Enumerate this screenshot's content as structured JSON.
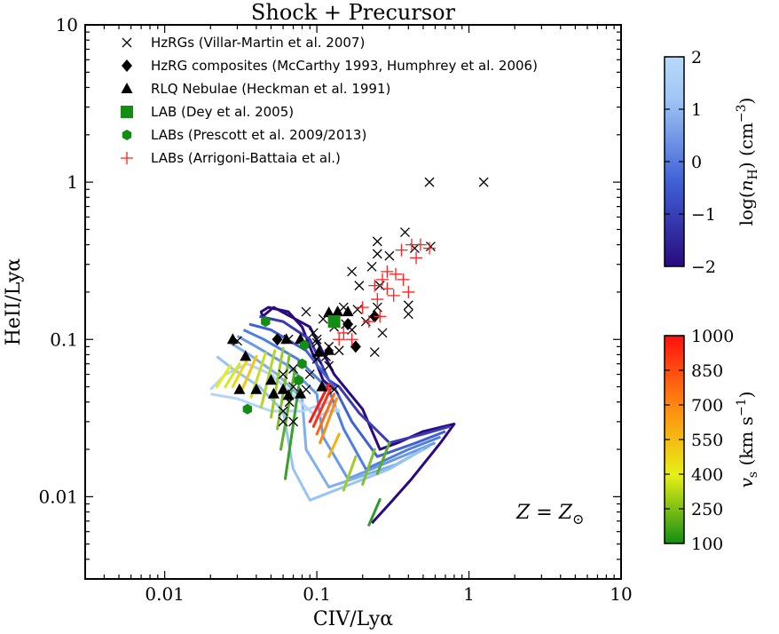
{
  "chart_data": {
    "type": "scatter",
    "title": "Shock + Precursor",
    "xlabel": "CIV/Lyα",
    "ylabel": "HeII/Lyα",
    "x_scale": "log",
    "y_scale": "log",
    "xlim": [
      0.003,
      10
    ],
    "ylim": [
      0.003,
      10
    ],
    "x_ticks": [
      {
        "v": 0.01,
        "label": "0.01"
      },
      {
        "v": 0.1,
        "label": "0.1"
      },
      {
        "v": 1,
        "label": "1"
      },
      {
        "v": 10,
        "label": "10"
      }
    ],
    "y_ticks": [
      {
        "v": 0.01,
        "label": "0.01"
      },
      {
        "v": 0.1,
        "label": "0.1"
      },
      {
        "v": 1,
        "label": "1"
      },
      {
        "v": 10,
        "label": "10"
      }
    ],
    "annotation": {
      "text_main": "Z",
      "text_eq": " = ",
      "text_sub": "Z",
      "text_sun": "⊙"
    },
    "legend": {
      "position": "top",
      "entries": [
        {
          "marker": "x",
          "color": "#000000",
          "label": "HzRGs (Villar-Martin et al. 2007)"
        },
        {
          "marker": "diamond",
          "color": "#000000",
          "label": "HzRG composites (McCarthy 1993, Humphrey et al. 2006)"
        },
        {
          "marker": "triangle",
          "color": "#000000",
          "label": "RLQ Nebulae (Heckman et al. 1991)"
        },
        {
          "marker": "square",
          "color": "#138d13",
          "label": "LAB (Dey et al. 2005)"
        },
        {
          "marker": "hexagon",
          "color": "#138d13",
          "label": "LABs (Prescott et al. 2009/2013)"
        },
        {
          "marker": "plus",
          "color": "#ff2020",
          "label": "LABs (Arrigoni-Battaia et al.)"
        }
      ]
    },
    "series": [
      {
        "name": "HzRGs (Villar-Martin et al. 2007)",
        "marker": "x",
        "color": "#000000",
        "points": [
          [
            0.55,
            1.0
          ],
          [
            1.25,
            1.0
          ],
          [
            0.38,
            0.48
          ],
          [
            0.25,
            0.42
          ],
          [
            0.56,
            0.39
          ],
          [
            0.44,
            0.38
          ],
          [
            0.25,
            0.35
          ],
          [
            0.3,
            0.34
          ],
          [
            0.17,
            0.27
          ],
          [
            0.23,
            0.29
          ],
          [
            0.26,
            0.22
          ],
          [
            0.19,
            0.22
          ],
          [
            0.25,
            0.16
          ],
          [
            0.4,
            0.165
          ],
          [
            0.4,
            0.145
          ],
          [
            0.15,
            0.16
          ],
          [
            0.185,
            0.155
          ],
          [
            0.155,
            0.125
          ],
          [
            0.17,
            0.115
          ],
          [
            0.21,
            0.13
          ],
          [
            0.13,
            0.12
          ],
          [
            0.11,
            0.135
          ],
          [
            0.095,
            0.11
          ],
          [
            0.1,
            0.1
          ],
          [
            0.12,
            0.09
          ],
          [
            0.27,
            0.11
          ],
          [
            0.14,
            0.085
          ],
          [
            0.1,
            0.095
          ],
          [
            0.115,
            0.078
          ],
          [
            0.12,
            0.068
          ],
          [
            0.24,
            0.083
          ],
          [
            0.085,
            0.15
          ],
          [
            0.1,
            0.075
          ],
          [
            0.09,
            0.06
          ],
          [
            0.06,
            0.06
          ],
          [
            0.085,
            0.048
          ],
          [
            0.13,
            0.048
          ],
          [
            0.07,
            0.05
          ],
          [
            0.066,
            0.04
          ],
          [
            0.06,
            0.035
          ],
          [
            0.06,
            0.03
          ],
          [
            0.07,
            0.03
          ],
          [
            0.07,
            0.065
          ],
          [
            0.065,
            0.1
          ],
          [
            0.03,
            0.098
          ]
        ]
      },
      {
        "name": "HzRG composites (McCarthy 1993, Humphrey et al. 2006)",
        "marker": "diamond",
        "color": "#000000",
        "points": [
          [
            0.16,
            0.125
          ],
          [
            0.18,
            0.09
          ],
          [
            0.24,
            0.14
          ],
          [
            0.055,
            0.1
          ]
        ]
      },
      {
        "name": "RLQ Nebulae (Heckman et al. 1991)",
        "marker": "triangle",
        "color": "#000000",
        "points": [
          [
            0.028,
            0.1
          ],
          [
            0.034,
            0.078
          ],
          [
            0.063,
            0.1
          ],
          [
            0.05,
            0.055
          ],
          [
            0.06,
            0.048
          ],
          [
            0.078,
            0.1
          ],
          [
            0.103,
            0.083
          ],
          [
            0.137,
            0.15
          ],
          [
            0.16,
            0.15
          ],
          [
            0.12,
            0.148
          ],
          [
            0.12,
            0.085
          ],
          [
            0.031,
            0.048
          ],
          [
            0.04,
            0.048
          ],
          [
            0.052,
            0.045
          ],
          [
            0.065,
            0.044
          ],
          [
            0.078,
            0.045
          ],
          [
            0.108,
            0.05
          ]
        ]
      },
      {
        "name": "LAB (Dey et al. 2005)",
        "marker": "square",
        "color": "#138d13",
        "points": [
          [
            0.13,
            0.13
          ]
        ]
      },
      {
        "name": "LABs (Prescott et al. 2009/2013)",
        "marker": "hexagon",
        "color": "#138d13",
        "points": [
          [
            0.046,
            0.13
          ],
          [
            0.083,
            0.092
          ],
          [
            0.035,
            0.036
          ],
          [
            0.08,
            0.07
          ],
          [
            0.076,
            0.055
          ]
        ]
      },
      {
        "name": "LABs (Arrigoni-Battaia et al.)",
        "marker": "plus",
        "color": "#ff2020",
        "points": [
          [
            0.42,
            0.4
          ],
          [
            0.48,
            0.4
          ],
          [
            0.55,
            0.38
          ],
          [
            0.36,
            0.37
          ],
          [
            0.45,
            0.33
          ],
          [
            0.29,
            0.27
          ],
          [
            0.33,
            0.26
          ],
          [
            0.27,
            0.24
          ],
          [
            0.37,
            0.24
          ],
          [
            0.24,
            0.22
          ],
          [
            0.29,
            0.21
          ],
          [
            0.32,
            0.19
          ],
          [
            0.25,
            0.18
          ],
          [
            0.4,
            0.2
          ],
          [
            0.2,
            0.16
          ],
          [
            0.26,
            0.14
          ],
          [
            0.22,
            0.13
          ],
          [
            0.15,
            0.11
          ],
          [
            0.14,
            0.1
          ],
          [
            0.17,
            0.1
          ]
        ]
      }
    ],
    "model_grid": [
      {
        "nH": -2,
        "color": "#2a0a7f",
        "points": [
          [
            0.13,
            0.048
          ],
          [
            0.11,
            0.055
          ],
          [
            0.08,
            0.12
          ],
          [
            0.065,
            0.15
          ],
          [
            0.048,
            0.16
          ],
          [
            0.043,
            0.15
          ],
          [
            0.044,
            0.14
          ],
          [
            0.052,
            0.16
          ],
          [
            0.09,
            0.12
          ],
          [
            0.13,
            0.06
          ],
          [
            0.2,
            0.036
          ],
          [
            0.26,
            0.02
          ],
          [
            0.34,
            0.022
          ],
          [
            0.5,
            0.026
          ],
          [
            0.8,
            0.029
          ],
          [
            0.65,
            0.022
          ],
          [
            0.42,
            0.013
          ],
          [
            0.3,
            0.009
          ],
          [
            0.23,
            0.0068
          ]
        ]
      },
      {
        "nH": -1.5,
        "color": "#3a3ab5",
        "points": [
          [
            0.042,
            0.14
          ],
          [
            0.06,
            0.13
          ],
          [
            0.09,
            0.1
          ],
          [
            0.12,
            0.055
          ],
          [
            0.14,
            0.05
          ],
          [
            0.19,
            0.034
          ],
          [
            0.3,
            0.022
          ],
          [
            0.5,
            0.025
          ],
          [
            0.75,
            0.028
          ]
        ]
      },
      {
        "name": "",
        "nH": -1,
        "color": "#3f60d6",
        "points": [
          [
            0.036,
            0.125
          ],
          [
            0.05,
            0.115
          ],
          [
            0.085,
            0.085
          ],
          [
            0.13,
            0.05
          ],
          [
            0.17,
            0.03
          ],
          [
            0.25,
            0.018
          ],
          [
            0.45,
            0.022
          ],
          [
            0.7,
            0.026
          ]
        ]
      },
      {
        "nH": -0.5,
        "color": "#4f7ee0",
        "points": [
          [
            0.033,
            0.115
          ],
          [
            0.045,
            0.1
          ],
          [
            0.075,
            0.075
          ],
          [
            0.12,
            0.048
          ],
          [
            0.15,
            0.027
          ],
          [
            0.21,
            0.015
          ],
          [
            0.4,
            0.02
          ],
          [
            0.65,
            0.024
          ]
        ]
      },
      {
        "nH": 0,
        "color": "#6a9ae6",
        "points": [
          [
            0.03,
            0.105
          ],
          [
            0.04,
            0.09
          ],
          [
            0.065,
            0.068
          ],
          [
            0.1,
            0.045
          ],
          [
            0.11,
            0.024
          ],
          [
            0.16,
            0.013
          ],
          [
            0.36,
            0.018
          ],
          [
            0.6,
            0.022
          ]
        ]
      },
      {
        "nH": 0.5,
        "color": "#7fb0ee",
        "points": [
          [
            0.027,
            0.095
          ],
          [
            0.036,
            0.08
          ],
          [
            0.055,
            0.06
          ],
          [
            0.08,
            0.042
          ],
          [
            0.085,
            0.02
          ],
          [
            0.12,
            0.0115
          ],
          [
            0.33,
            0.016
          ],
          [
            0.55,
            0.021
          ]
        ]
      },
      {
        "nH": 1,
        "color": "#98c4f3",
        "points": [
          [
            0.022,
            0.078
          ],
          [
            0.028,
            0.065
          ],
          [
            0.042,
            0.05
          ],
          [
            0.06,
            0.035
          ],
          [
            0.07,
            0.015
          ],
          [
            0.09,
            0.0095
          ],
          [
            0.3,
            0.015
          ],
          [
            0.5,
            0.02
          ]
        ]
      },
      {
        "nH": 2,
        "color": "#b3d5f8",
        "points": [
          [
            0.02,
            0.048
          ],
          [
            0.025,
            0.06
          ],
          [
            0.035,
            0.07
          ],
          [
            0.05,
            0.06
          ],
          [
            0.1,
            0.032
          ],
          [
            0.12,
            0.035
          ],
          [
            0.14,
            0.035
          ],
          [
            0.12,
            0.04
          ],
          [
            0.08,
            0.035
          ],
          [
            0.05,
            0.035
          ],
          [
            0.03,
            0.042
          ],
          [
            0.02,
            0.045
          ]
        ]
      }
    ],
    "velocity_hatches": [
      {
        "v": 400,
        "color": "#e6ef10",
        "points": [
          [
            0.022,
            0.05
          ],
          [
            0.027,
            0.068
          ]
        ]
      },
      {
        "v": 450,
        "color": "#d8e81a",
        "points": [
          [
            0.025,
            0.05
          ],
          [
            0.031,
            0.07
          ]
        ]
      },
      {
        "v": 500,
        "color": "#f2d70f",
        "points": [
          [
            0.028,
            0.05
          ],
          [
            0.035,
            0.075
          ]
        ]
      },
      {
        "v": 550,
        "color": "#f1c712",
        "points": [
          [
            0.032,
            0.047
          ],
          [
            0.04,
            0.078
          ]
        ]
      },
      {
        "v": 300,
        "color": "#c8e020",
        "points": [
          [
            0.037,
            0.043
          ],
          [
            0.046,
            0.082
          ]
        ]
      },
      {
        "v": 350,
        "color": "#b4d624",
        "points": [
          [
            0.043,
            0.037
          ],
          [
            0.053,
            0.085
          ]
        ]
      },
      {
        "v": 250,
        "color": "#9ccc2a",
        "points": [
          [
            0.05,
            0.032
          ],
          [
            0.06,
            0.088
          ]
        ]
      },
      {
        "v": 200,
        "color": "#7fbe30",
        "points": [
          [
            0.055,
            0.027
          ],
          [
            0.066,
            0.08
          ]
        ]
      },
      {
        "v": 150,
        "color": "#5aac2a",
        "points": [
          [
            0.058,
            0.02
          ],
          [
            0.072,
            0.065
          ]
        ]
      },
      {
        "v": 120,
        "color": "#37a028",
        "points": [
          [
            0.062,
            0.013
          ],
          [
            0.076,
            0.05
          ]
        ]
      },
      {
        "v": 700,
        "color": "#ff6a10",
        "points": [
          [
            0.1,
            0.025
          ],
          [
            0.13,
            0.045
          ]
        ]
      },
      {
        "v": 850,
        "color": "#ff3010",
        "points": [
          [
            0.095,
            0.028
          ],
          [
            0.125,
            0.05
          ]
        ]
      },
      {
        "v": 1000,
        "color": "#ff1a10",
        "points": [
          [
            0.09,
            0.03
          ],
          [
            0.12,
            0.052
          ]
        ]
      },
      {
        "v": 600,
        "color": "#ff8a10",
        "points": [
          [
            0.105,
            0.022
          ],
          [
            0.135,
            0.042
          ]
        ]
      },
      {
        "v": 500,
        "color": "#fcb010",
        "points": [
          [
            0.12,
            0.018
          ],
          [
            0.14,
            0.025
          ]
        ]
      },
      {
        "v": 300,
        "color": "#9fcc2a",
        "points": [
          [
            0.15,
            0.011
          ],
          [
            0.18,
            0.018
          ]
        ]
      },
      {
        "v": 250,
        "color": "#7fc030",
        "points": [
          [
            0.2,
            0.012
          ],
          [
            0.24,
            0.02
          ]
        ]
      },
      {
        "v": 200,
        "color": "#5aac2a",
        "points": [
          [
            0.25,
            0.014
          ],
          [
            0.3,
            0.022
          ]
        ]
      },
      {
        "v": 150,
        "color": "#2e9c2a",
        "points": [
          [
            0.22,
            0.0066
          ],
          [
            0.26,
            0.0096
          ]
        ]
      }
    ],
    "colorbars": [
      {
        "name": "nH",
        "label_main": "log(",
        "label_var": "n",
        "label_sub": "H",
        "label_close": ") (cm",
        "label_sup": "−3",
        "label_end": ")",
        "range": [
          -2,
          2
        ],
        "ticks": [
          {
            "v": -2,
            "label": "−2"
          },
          {
            "v": -1,
            "label": "−1"
          },
          {
            "v": 0,
            "label": "0"
          },
          {
            "v": 1,
            "label": "1"
          },
          {
            "v": 2,
            "label": "2"
          }
        ],
        "colors": [
          "#2a0a7f",
          "#3f60d6",
          "#9fc6f5",
          "#b8d9fa"
        ]
      },
      {
        "name": "vs",
        "label_main": "v",
        "label_sub": "s",
        "label_close": " (km s",
        "label_sup": "−1",
        "label_end": ")",
        "range": [
          100,
          1000
        ],
        "ticks": [
          {
            "v": 100,
            "label": "100"
          },
          {
            "v": 250,
            "label": "250"
          },
          {
            "v": 400,
            "label": "400"
          },
          {
            "v": 550,
            "label": "550"
          },
          {
            "v": 700,
            "label": "700"
          },
          {
            "v": 850,
            "label": "850"
          },
          {
            "v": 1000,
            "label": "1000"
          }
        ],
        "colors": [
          "#138d13",
          "#e8f015",
          "#ff8a10",
          "#ff1010"
        ]
      }
    ]
  }
}
